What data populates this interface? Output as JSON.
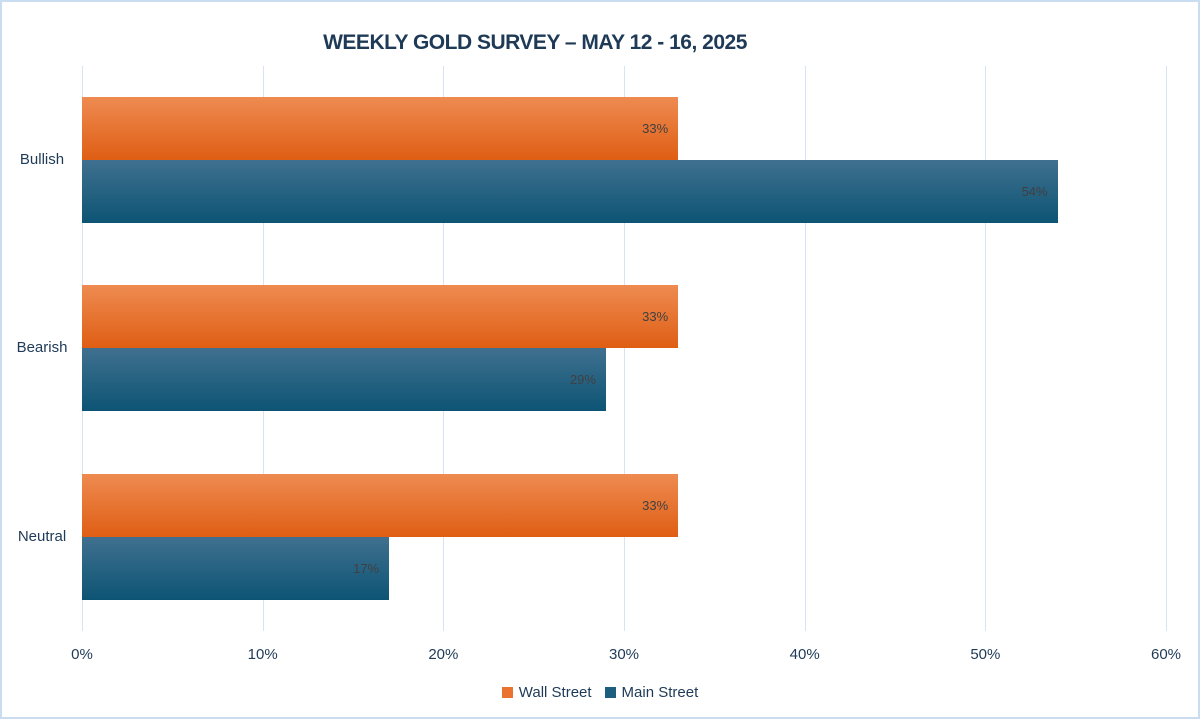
{
  "chart_data": {
    "type": "bar",
    "orientation": "horizontal",
    "title": "WEEKLY GOLD SURVEY – MAY 12 - 16, 2025",
    "categories": [
      "Bullish",
      "Bearish",
      "Neutral"
    ],
    "series": [
      {
        "name": "Wall Street",
        "values": [
          33,
          33,
          33
        ],
        "color_top": "#EE8B51",
        "color_bottom": "#DF5E14",
        "legend_color": "#E9732F"
      },
      {
        "name": "Main Street",
        "values": [
          54,
          29,
          17
        ],
        "color_top": "#40708F",
        "color_bottom": "#0D5474",
        "legend_color": "#1D5D7E"
      }
    ],
    "data_labels": [
      [
        "33%",
        "54%"
      ],
      [
        "33%",
        "29%"
      ],
      [
        "33%",
        "17%"
      ]
    ],
    "x_ticks": [
      "0%",
      "10%",
      "20%",
      "30%",
      "40%",
      "50%",
      "60%"
    ],
    "xlim": [
      0,
      60
    ],
    "grid": "vertical",
    "legend_position": "bottom",
    "colors": {
      "title_text": "#1E3A56",
      "axis_text": "#1E3A56",
      "data_label_text": "#404040",
      "gridline": "#D7E3F2",
      "frame_border": "#C9DCF0",
      "background": "#FFFFFF"
    }
  }
}
